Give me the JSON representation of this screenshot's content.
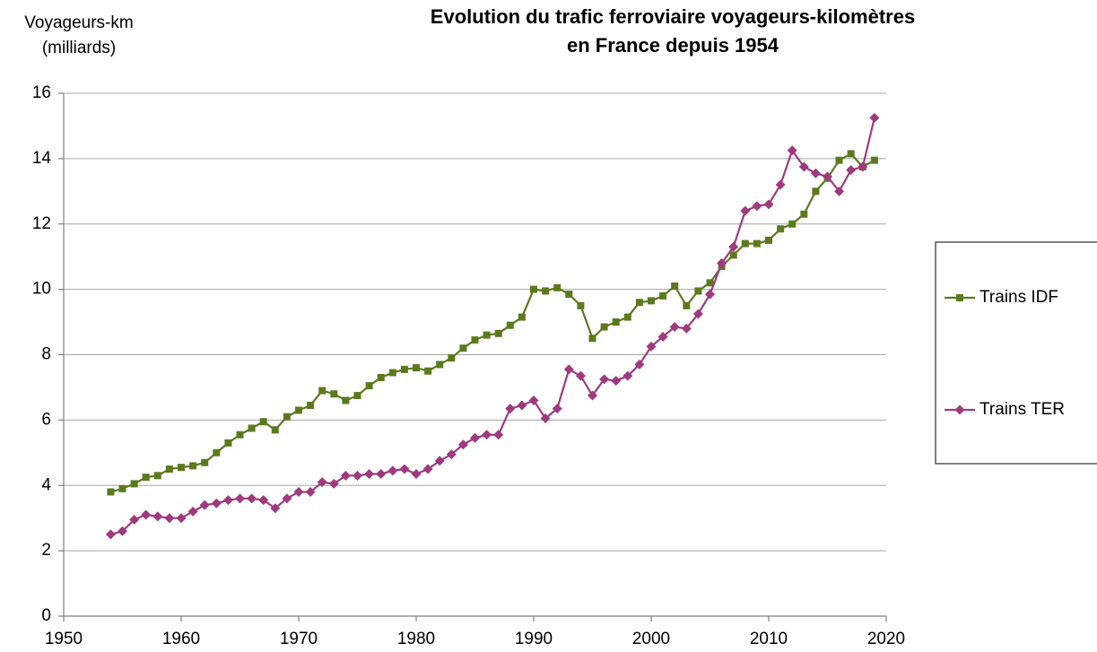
{
  "chart_data": {
    "type": "line",
    "title": [
      "Evolution du trafic ferroviaire voyageurs-kilomètres",
      "en France depuis 1954"
    ],
    "y_label": [
      "Voyageurs-km",
      "(milliards)"
    ],
    "x": [
      1954,
      1955,
      1956,
      1957,
      1958,
      1959,
      1960,
      1961,
      1962,
      1963,
      1964,
      1965,
      1966,
      1967,
      1968,
      1969,
      1970,
      1971,
      1972,
      1973,
      1974,
      1975,
      1976,
      1977,
      1978,
      1979,
      1980,
      1981,
      1982,
      1983,
      1984,
      1985,
      1986,
      1987,
      1988,
      1989,
      1990,
      1991,
      1992,
      1993,
      1994,
      1995,
      1996,
      1997,
      1998,
      1999,
      2000,
      2001,
      2002,
      2003,
      2004,
      2005,
      2006,
      2007,
      2008,
      2009,
      2010,
      2011,
      2012,
      2013,
      2014,
      2015,
      2016,
      2017,
      2018,
      2019
    ],
    "series": [
      {
        "name": "Trains IDF",
        "color": "#5b7a1e",
        "marker": "square",
        "values": [
          3.8,
          3.9,
          4.05,
          4.25,
          4.3,
          4.5,
          4.55,
          4.6,
          4.7,
          5.0,
          5.3,
          5.55,
          5.75,
          5.95,
          5.7,
          6.1,
          6.3,
          6.45,
          6.9,
          6.8,
          6.6,
          6.75,
          7.05,
          7.3,
          7.45,
          7.55,
          7.6,
          7.5,
          7.7,
          7.9,
          8.2,
          8.45,
          8.6,
          8.65,
          8.9,
          9.15,
          10.0,
          9.95,
          10.05,
          9.85,
          9.5,
          8.5,
          8.85,
          9.0,
          9.15,
          9.6,
          9.65,
          9.8,
          10.1,
          9.5,
          9.95,
          10.2,
          10.7,
          11.05,
          11.4,
          11.4,
          11.5,
          11.85,
          12.0,
          12.3,
          13.0,
          13.4,
          13.95,
          14.15,
          13.75,
          13.95
        ]
      },
      {
        "name": "Trains TER",
        "color": "#9e3a7e",
        "marker": "diamond",
        "values": [
          2.5,
          2.6,
          2.95,
          3.1,
          3.05,
          3.0,
          3.0,
          3.2,
          3.4,
          3.45,
          3.55,
          3.6,
          3.6,
          3.55,
          3.3,
          3.6,
          3.8,
          3.8,
          4.1,
          4.05,
          4.3,
          4.3,
          4.35,
          4.35,
          4.45,
          4.5,
          4.35,
          4.5,
          4.75,
          4.95,
          5.25,
          5.45,
          5.55,
          5.55,
          6.35,
          6.45,
          6.6,
          6.05,
          6.35,
          7.55,
          7.35,
          6.75,
          7.25,
          7.2,
          7.35,
          7.7,
          8.25,
          8.55,
          8.85,
          8.8,
          9.25,
          9.85,
          10.8,
          11.3,
          12.4,
          12.55,
          12.6,
          13.2,
          14.25,
          13.75,
          13.55,
          13.45,
          13.0,
          13.65,
          13.75,
          15.25
        ]
      }
    ],
    "xlim": [
      1950,
      2020
    ],
    "xticks": [
      1950,
      1960,
      1970,
      1980,
      1990,
      2000,
      2010,
      2020
    ],
    "ylim": [
      0,
      16
    ],
    "yticks": [
      0,
      2,
      4,
      6,
      8,
      10,
      12,
      14,
      16
    ],
    "grid": true,
    "legend": "right"
  }
}
